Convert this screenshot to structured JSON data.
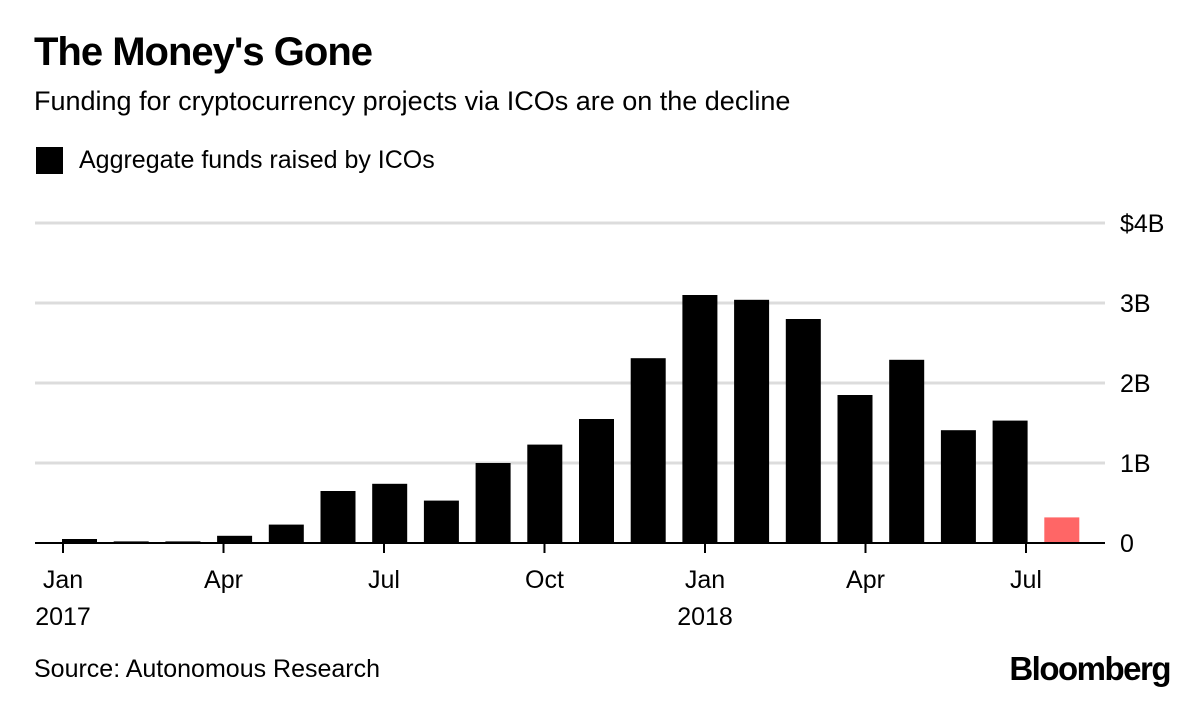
{
  "title": "The Money's Gone",
  "subtitle": "Funding for cryptocurrency projects via ICOs are on the decline",
  "source": "Source: Autonomous Research",
  "logo": "Bloomberg",
  "chart_data": {
    "type": "bar",
    "legend": [
      {
        "label": "Aggregate funds raised by ICOs",
        "color": "#000000"
      }
    ],
    "legend_placement": "top-left",
    "categories": [
      "Jan 2017",
      "Feb 2017",
      "Mar 2017",
      "Apr 2017",
      "May 2017",
      "Jun 2017",
      "Jul 2017",
      "Aug 2017",
      "Sep 2017",
      "Oct 2017",
      "Nov 2017",
      "Dec 2017",
      "Jan 2018",
      "Feb 2018",
      "Mar 2018",
      "Apr 2018",
      "May 2018",
      "Jun 2018",
      "Jul 2018",
      "Aug 2018"
    ],
    "values": [
      0.05,
      0.02,
      0.02,
      0.09,
      0.23,
      0.65,
      0.74,
      0.53,
      1.0,
      1.23,
      1.55,
      2.31,
      3.1,
      3.04,
      2.8,
      1.85,
      2.29,
      1.41,
      1.53,
      0.32
    ],
    "colors": [
      "#000000",
      "#000000",
      "#000000",
      "#000000",
      "#000000",
      "#000000",
      "#000000",
      "#000000",
      "#000000",
      "#000000",
      "#000000",
      "#000000",
      "#000000",
      "#000000",
      "#000000",
      "#000000",
      "#000000",
      "#000000",
      "#000000",
      "#ff6666"
    ],
    "unit": "billions USD",
    "ylim": [
      0,
      4
    ],
    "yticks": [
      {
        "value": 0,
        "label": "0"
      },
      {
        "value": 1,
        "label": "1B"
      },
      {
        "value": 2,
        "label": "2B"
      },
      {
        "value": 3,
        "label": "3B"
      },
      {
        "value": 4,
        "label": "$4B"
      }
    ],
    "xticks": [
      {
        "month_index": 0,
        "label": "Jan",
        "year": "2017"
      },
      {
        "month_index": 3,
        "label": "Apr",
        "year": ""
      },
      {
        "month_index": 6,
        "label": "Jul",
        "year": ""
      },
      {
        "month_index": 9,
        "label": "Oct",
        "year": ""
      },
      {
        "month_index": 12,
        "label": "Jan",
        "year": "2018"
      },
      {
        "month_index": 15,
        "label": "Apr",
        "year": ""
      },
      {
        "month_index": 18,
        "label": "Jul",
        "year": ""
      }
    ],
    "grid": true,
    "y_axis_side": "right"
  }
}
